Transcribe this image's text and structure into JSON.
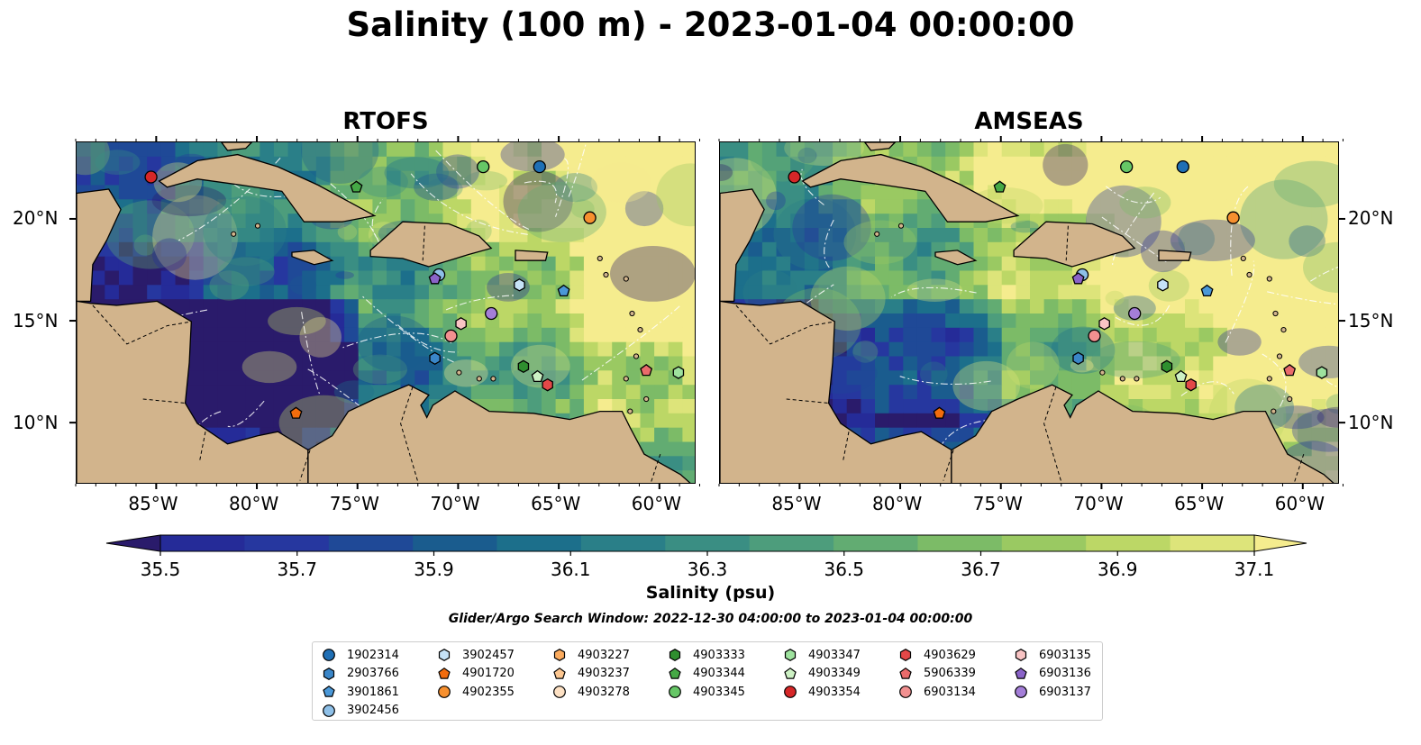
{
  "title": "Salinity (100 m) - 2023-01-04 00:00:00",
  "panels": [
    {
      "title": "RTOFS"
    },
    {
      "title": "AMSEAS"
    }
  ],
  "colors": {
    "land": "#d2b48c",
    "ocean_beyond_domain": "#95b3e0",
    "marker_edge": "#000000",
    "colormap": [
      "#2a1b6b",
      "#252b98",
      "#26379f",
      "#1f4997",
      "#1a5c8e",
      "#1c6f8b",
      "#2a7f88",
      "#3a8e83",
      "#4d9d7c",
      "#62ac72",
      "#7cbb67",
      "#9ac962",
      "#bcd766",
      "#dde47a",
      "#f5ec8e"
    ]
  },
  "axes": {
    "x_ticks": [
      "85°W",
      "80°W",
      "75°W",
      "70°W",
      "65°W",
      "60°W"
    ],
    "y_ticks_left": [
      "20°N",
      "15°N",
      "10°N"
    ],
    "y_ticks_right": [
      "20°N",
      "15°N",
      "10°N"
    ]
  },
  "colorbar": {
    "label": "Salinity (psu)",
    "ticks": [
      "35.5",
      "35.7",
      "35.9",
      "36.1",
      "36.3",
      "36.5",
      "36.7",
      "36.9",
      "37.1"
    ],
    "extend": "both"
  },
  "search_window": "Glider/Argo Search Window: 2022-12-30 04:00:00 to 2023-01-04 00:00:00",
  "legend": [
    {
      "id": "1902314",
      "marker": "circle",
      "color": "#1f6fb5"
    },
    {
      "id": "2903766",
      "marker": "hexagon",
      "color": "#3a86c8"
    },
    {
      "id": "3901861",
      "marker": "pentagon",
      "color": "#4a98d8"
    },
    {
      "id": "3902456",
      "marker": "circle",
      "color": "#8ec0e8"
    },
    {
      "id": "3902457",
      "marker": "hexagon",
      "color": "#c6e2f7"
    },
    {
      "id": "4901720",
      "marker": "pentagon",
      "color": "#f26c0d"
    },
    {
      "id": "4902355",
      "marker": "circle",
      "color": "#f7902f"
    },
    {
      "id": "4903227",
      "marker": "hexagon",
      "color": "#fbab5e"
    },
    {
      "id": "4903237",
      "marker": "pentagon",
      "color": "#fdc791"
    },
    {
      "id": "4903278",
      "marker": "circle",
      "color": "#fde1c4"
    },
    {
      "id": "4903333",
      "marker": "hexagon",
      "color": "#2f8f2f"
    },
    {
      "id": "4903344",
      "marker": "pentagon",
      "color": "#45a845"
    },
    {
      "id": "4903345",
      "marker": "circle",
      "color": "#66c766"
    },
    {
      "id": "4903347",
      "marker": "hexagon",
      "color": "#9ee29e"
    },
    {
      "id": "4903349",
      "marker": "pentagon",
      "color": "#cdf1c4"
    },
    {
      "id": "4903354",
      "marker": "circle",
      "color": "#d62728"
    },
    {
      "id": "4903629",
      "marker": "hexagon",
      "color": "#e34848"
    },
    {
      "id": "5906339",
      "marker": "pentagon",
      "color": "#ea6b6b"
    },
    {
      "id": "6903134",
      "marker": "circle",
      "color": "#f29090"
    },
    {
      "id": "6903135",
      "marker": "hexagon",
      "color": "#f9c4c4"
    },
    {
      "id": "6903136",
      "marker": "pentagon",
      "color": "#8a63c8"
    },
    {
      "id": "6903137",
      "marker": "circle",
      "color": "#a47ed8"
    }
  ],
  "chart_data": {
    "type": "heatmap",
    "title": "Salinity (100 m) - 2023-01-04 00:00:00",
    "variable": "Salinity (100 m)",
    "units": "psu",
    "time": "2023-01-04 00:00:00",
    "clim": [
      35.4,
      37.2
    ],
    "colorbar_ticks": [
      35.5,
      35.7,
      35.9,
      36.1,
      36.3,
      36.5,
      36.7,
      36.9,
      37.1
    ],
    "lon_range": [
      -89,
      -58.2
    ],
    "lat_range": [
      7,
      23.8
    ],
    "panels": [
      "RTOFS",
      "AMSEAS"
    ],
    "observations": [
      {
        "id": "4903354",
        "lon": -85.3,
        "lat": 22.1
      },
      {
        "id": "4903345",
        "lon": -68.8,
        "lat": 22.6
      },
      {
        "id": "1902314",
        "lon": -66.0,
        "lat": 22.6
      },
      {
        "id": "4903344",
        "lon": -75.1,
        "lat": 21.6
      },
      {
        "id": "4902355",
        "lon": -63.5,
        "lat": 20.1
      },
      {
        "id": "3902456",
        "lon": -71.0,
        "lat": 17.3
      },
      {
        "id": "6903136",
        "lon": -71.2,
        "lat": 17.1
      },
      {
        "id": "3902457",
        "lon": -67.0,
        "lat": 16.8
      },
      {
        "id": "3901861",
        "lon": -64.8,
        "lat": 16.5
      },
      {
        "id": "6903137",
        "lon": -68.4,
        "lat": 15.4
      },
      {
        "id": "6903135",
        "lon": -69.9,
        "lat": 14.9
      },
      {
        "id": "6903134",
        "lon": -70.4,
        "lat": 14.3
      },
      {
        "id": "2903766",
        "lon": -71.2,
        "lat": 13.2
      },
      {
        "id": "4903333",
        "lon": -66.8,
        "lat": 12.8
      },
      {
        "id": "4903349",
        "lon": -66.1,
        "lat": 12.3
      },
      {
        "id": "4903629",
        "lon": -65.6,
        "lat": 11.9
      },
      {
        "id": "5906339",
        "lon": -60.7,
        "lat": 12.6
      },
      {
        "id": "4903347",
        "lon": -59.1,
        "lat": 12.5
      },
      {
        "id": "4901720",
        "lon": -78.1,
        "lat": 10.5
      }
    ]
  }
}
